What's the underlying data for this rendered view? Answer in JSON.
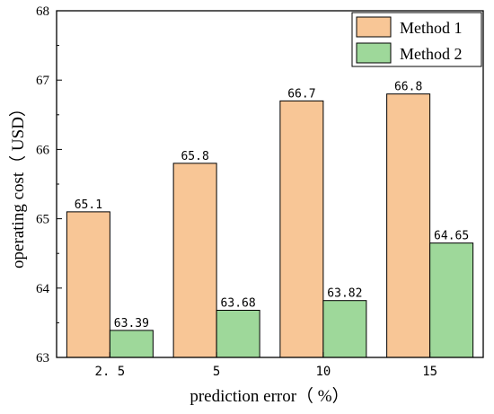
{
  "chart_data": {
    "type": "bar",
    "categories": [
      "2.5",
      "5",
      "10",
      "15"
    ],
    "series": [
      {
        "name": "Method 1",
        "values": [
          65.1,
          65.8,
          66.7,
          66.8
        ],
        "labels": [
          "65.1",
          "65.8",
          "66.7",
          "66.8"
        ],
        "color": "#F8C696"
      },
      {
        "name": "Method 2",
        "values": [
          63.39,
          63.68,
          63.82,
          64.65
        ],
        "labels": [
          "63.39",
          "63.68",
          "63.82",
          "64.65"
        ],
        "color": "#9ED89A"
      }
    ],
    "xlabel": "prediction error（ %）",
    "ylabel": "operating cost（ USD）",
    "ylim": [
      63,
      68
    ],
    "yticks": [
      "63",
      "64",
      "65",
      "66",
      "67",
      "68"
    ],
    "xtick_labels": [
      "2. 5",
      "5",
      "10",
      "15"
    ],
    "legend_position": "top-right",
    "grid": false
  }
}
